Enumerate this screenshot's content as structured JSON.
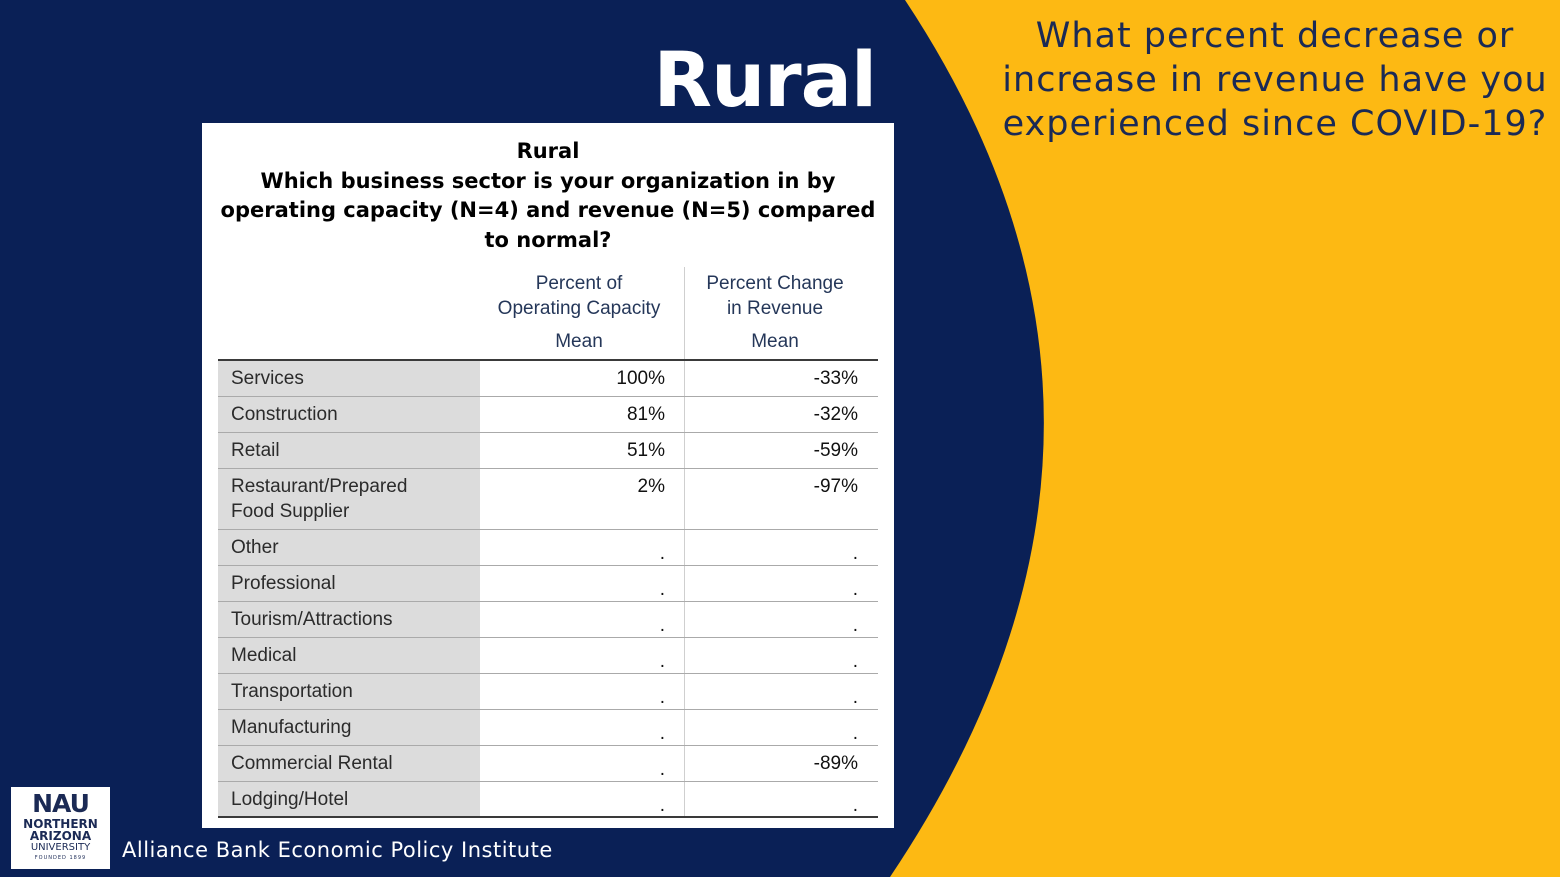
{
  "colors": {
    "navy": "#0a2056",
    "gold": "#FDB913",
    "white": "#ffffff"
  },
  "slide_title": "Rural",
  "question": [
    "What percent decrease or",
    "increase in revenue have you",
    "experienced since COVID-19?"
  ],
  "table": {
    "title_lines": [
      "Rural",
      "Which business sector is your organization in by",
      "operating capacity (N=4) and revenue (N=5) compared",
      "to normal?"
    ],
    "col1_header": [
      "Percent of",
      "Operating Capacity"
    ],
    "col2_header": [
      "Percent Change",
      "in Revenue"
    ],
    "col1_sub": "Mean",
    "col2_sub": "Mean",
    "rows": [
      {
        "label": [
          "Services"
        ],
        "capacity": "100%",
        "revenue": "-33%"
      },
      {
        "label": [
          "Construction"
        ],
        "capacity": "81%",
        "revenue": "-32%"
      },
      {
        "label": [
          "Retail"
        ],
        "capacity": "51%",
        "revenue": "-59%"
      },
      {
        "label": [
          "Restaurant/Prepared",
          "Food Supplier"
        ],
        "capacity": "2%",
        "revenue": "-97%"
      },
      {
        "label": [
          "Other"
        ],
        "capacity": ".",
        "revenue": "."
      },
      {
        "label": [
          "Professional"
        ],
        "capacity": ".",
        "revenue": "."
      },
      {
        "label": [
          "Tourism/Attractions"
        ],
        "capacity": ".",
        "revenue": "."
      },
      {
        "label": [
          "Medical"
        ],
        "capacity": ".",
        "revenue": "."
      },
      {
        "label": [
          "Transportation"
        ],
        "capacity": ".",
        "revenue": "."
      },
      {
        "label": [
          "Manufacturing"
        ],
        "capacity": ".",
        "revenue": "."
      },
      {
        "label": [
          "Commercial Rental"
        ],
        "capacity": ".",
        "revenue": "-89%"
      },
      {
        "label": [
          "Lodging/Hotel"
        ],
        "capacity": ".",
        "revenue": "."
      }
    ]
  },
  "logo": {
    "mark": "NAU",
    "line1": "NORTHERN",
    "line2": "ARIZONA",
    "line3": "UNIVERSITY",
    "line4": "FOUNDED 1899"
  },
  "footer": "Alliance Bank Economic Policy Institute"
}
